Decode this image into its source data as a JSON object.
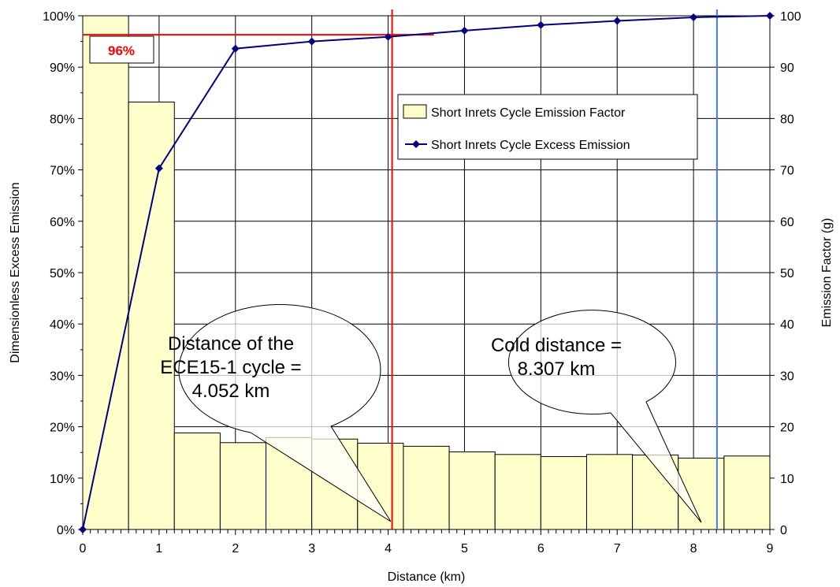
{
  "chart_data": {
    "type": "bar",
    "xlabel": "Distance (km)",
    "ylabel": "Dimensionless Excess Emission",
    "y2label": "Emission Factor (g)",
    "xlim": [
      0,
      9
    ],
    "ylim": [
      0,
      100
    ],
    "y2lim": [
      0,
      100
    ],
    "x_ticks": [
      "0",
      "1",
      "2",
      "3",
      "4",
      "5",
      "6",
      "7",
      "8",
      "9"
    ],
    "y_ticks": [
      "0%",
      "10%",
      "20%",
      "30%",
      "40%",
      "50%",
      "60%",
      "70%",
      "80%",
      "90%",
      "100%"
    ],
    "y2_ticks": [
      "0",
      "10",
      "20",
      "30",
      "40",
      "50",
      "60",
      "70",
      "80",
      "90",
      "100"
    ],
    "grid": true,
    "legend_position": "upper-right",
    "bar_series": {
      "name": "Short Inrets Cycle Emission Factor",
      "color": "#ffffcc",
      "bin_width": 0.6,
      "x_start": [
        0,
        0.6,
        1.2,
        1.8,
        2.4,
        3.0,
        3.6,
        4.2,
        4.8,
        5.4,
        6.0,
        6.6,
        7.2,
        7.8,
        8.4
      ],
      "values": [
        100,
        83.2,
        18.8,
        16.9,
        17.9,
        17.6,
        16.8,
        16.2,
        15.1,
        14.6,
        14.2,
        14.6,
        14.5,
        13.9,
        14.3
      ]
    },
    "line_series": {
      "name": "Short Inrets Cycle Excess Emission",
      "color": "#000080",
      "x": [
        0,
        1,
        2,
        3,
        4,
        5,
        6,
        7,
        8,
        9
      ],
      "values": [
        0,
        70.3,
        93.6,
        95.0,
        95.9,
        97.1,
        98.2,
        99.0,
        99.7,
        100
      ]
    },
    "reference_lines": {
      "ece_distance": 4.052,
      "ece_color": "#ff0000",
      "cold_distance": 8.307,
      "cold_color": "#4477ee",
      "pct_level": 96.3,
      "pct_x_end": 4.6,
      "pct_label": "96%"
    },
    "annotations": [
      {
        "lines": [
          "Distance of the",
          "ECE15-1 cycle =",
          "4.052 km"
        ]
      },
      {
        "lines": [
          "Cold distance =",
          "8.307 km"
        ]
      }
    ]
  }
}
